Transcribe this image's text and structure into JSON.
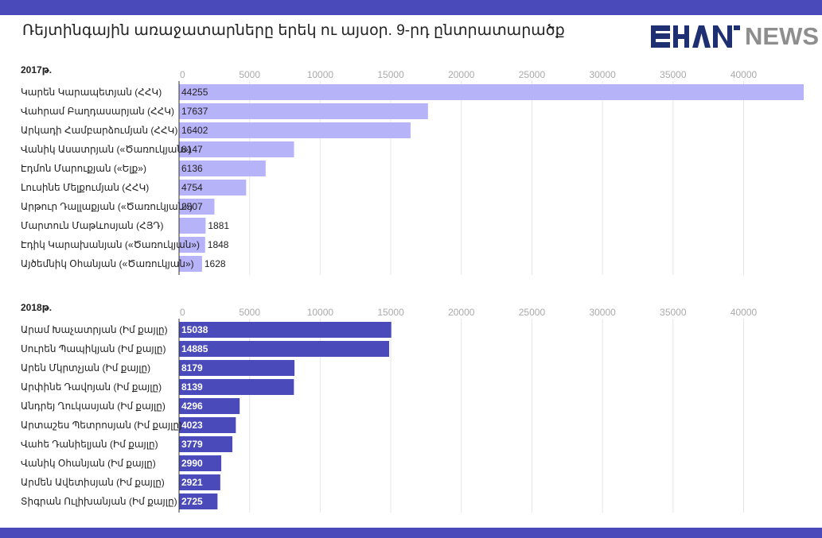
{
  "header": {
    "title": "Ռեյտինգային առաջատարները երեկ ու այսօր. 9-րդ ընտրատարածք",
    "logo_text": "NEWS",
    "logo_mark_icon": "shant-logo-icon"
  },
  "colors": {
    "band": "#4a4aba",
    "bar_2017": "#b7b3f9",
    "bar_2018": "#4a4aba",
    "value_2017": "#222222",
    "value_2018": "#ffffff",
    "logo_dark": "#1e2f72",
    "logo_gray": "#8e8e8e",
    "grid": "#e6e6e6"
  },
  "chart_data": [
    {
      "type": "bar",
      "orientation": "horizontal",
      "title": "2017թ.",
      "xlim": [
        0,
        44255
      ],
      "ticks": [
        0,
        5000,
        10000,
        15000,
        20000,
        25000,
        30000,
        35000,
        40000
      ],
      "grid": true,
      "categories": [
        "Կարեն Կարապետյան (ՀՀԿ)",
        "Վահրամ Բաղդասարյան (ՀՀԿ)",
        "Արկադի Համբարձումյան (ՀՀԿ)",
        "Վանիկ Ասատրյան («Ծառուկյան»)",
        "Էդմոն Մարուքյան («Ելք»)",
        "Լուսինե Մելքումյան (ՀՀԿ)",
        "Արթուր Դալլաքյան («Ծառուկյան»)",
        "Մարտուն Մաթևոսյան (ՀՅԴ)",
        "Էդիկ Կարախանյան («Ծառուկյան»)",
        "Այծեմնիկ Օհանյան («Ծառուկյան»)"
      ],
      "values": [
        44255,
        17637,
        16402,
        8147,
        6136,
        4754,
        2507,
        1881,
        1848,
        1628
      ]
    },
    {
      "type": "bar",
      "orientation": "horizontal",
      "title": "2018թ.",
      "xlim": [
        0,
        44255
      ],
      "ticks": [
        0,
        5000,
        10000,
        15000,
        20000,
        25000,
        30000,
        35000,
        40000
      ],
      "grid": true,
      "categories": [
        "Արամ Խաչատրյան (Իմ քայլը)",
        "Սուրեն Պապիկյան (Իմ քայլը)",
        "Արեն Մկրտչյան (Իմ քայլը)",
        "Արփինե Դավոյան (Իմ քայլը)",
        "Անդրեյ Ղուկասյան (Իմ քայլը)",
        "Արտաշես Պետրոսյան (Իմ քայլը)",
        "Վահե Դանիելյան (Իմ քայլը)",
        "Վանիկ Օհանյան (Իմ քայլը)",
        "Արմեն Ավետիսյան (Իմ քայլը)",
        "Տիգրան Ուլիխանյան (Իմ քայլը)"
      ],
      "values": [
        15038,
        14885,
        8179,
        8139,
        4296,
        4023,
        3779,
        2990,
        2921,
        2725
      ]
    }
  ]
}
